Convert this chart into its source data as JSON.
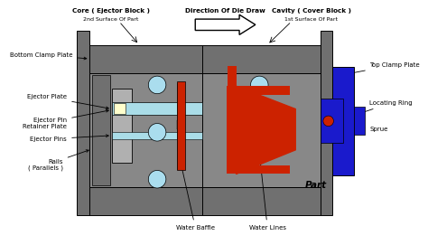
{
  "bg_color": "#ffffff",
  "gray_dark": "#707070",
  "gray_mid": "#888888",
  "gray_light": "#b0b0b0",
  "light_blue": "#aadde8",
  "blue_dark": "#1a1acc",
  "red_color": "#cc2200",
  "cream": "#ffffcc",
  "circle_color": "#aaddee",
  "labels": {
    "top_left": "Core ( Ejector Block )",
    "top_left_sub": "2nd Surface Of Part",
    "top_right": "Cavity ( Cover Block )",
    "top_right_sub": "1st Surface Of Part",
    "arrow_label": "Direction Of Die Draw",
    "bottom_clamp": "Bottom Clamp Plate",
    "ejector_plate": "Ejector Plate",
    "ejector_pin_ret": "Ejector Pin\nRetainer Plate",
    "ejector_pins": "Ejector Pins",
    "rails": "Rails\n( Parallels )",
    "top_clamp": "Top Clamp Plate",
    "locating_ring": "Locating Ring",
    "sprue": "Sprue",
    "part": "Part",
    "water_baffle": "Water Baffle",
    "water_lines": "Water Lines"
  }
}
